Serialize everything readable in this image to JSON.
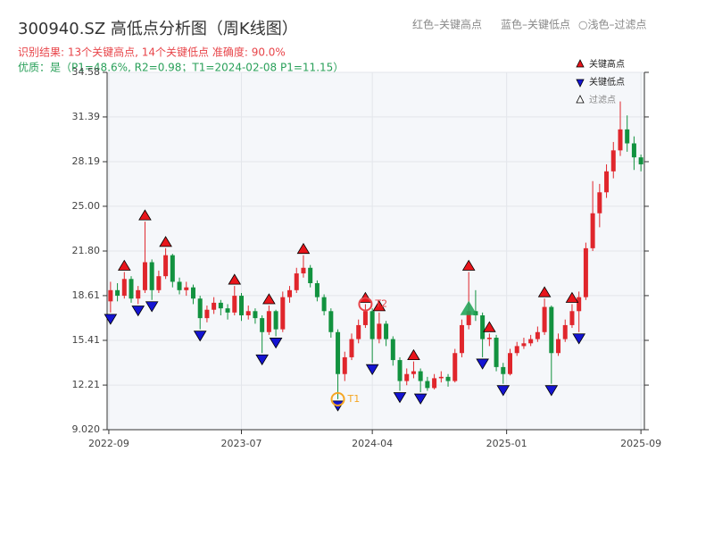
{
  "chart_data": {
    "type": "candlestick",
    "title": "300940.SZ 高低点分析图（周K线图）",
    "header_notes": [
      "红色–关键高点",
      "蓝色–关键低点",
      "○浅色–过滤点"
    ],
    "subtitle": "识别结果: 13个关键高点, 14个关键低点   准确度: 90.0%",
    "quality_note": "优质：是（P1=48.6%,  R2=0.98；T1=2024-02-08 P1=11.15）",
    "up_color": "#e0262c",
    "down_color": "#12923f",
    "grid": true,
    "xlim": [
      0,
      156
    ],
    "xticks": [
      {
        "value": 0.5,
        "label": "2022-09"
      },
      {
        "value": 39,
        "label": "2023-07"
      },
      {
        "value": 77,
        "label": "2024-04"
      },
      {
        "value": 116,
        "label": "2025-01"
      },
      {
        "value": 155,
        "label": "2025-09"
      }
    ],
    "ylim": [
      9.02,
      34.58
    ],
    "yticks": [
      {
        "value": 9.02,
        "label": "9.020"
      },
      12.21,
      15.41,
      18.61,
      {
        "value": 21.8,
        "label": "21.80"
      },
      {
        "value": 25,
        "label": "25.00"
      },
      28.19,
      31.39,
      34.58
    ],
    "x": [
      1,
      3,
      5,
      7,
      9,
      11,
      13,
      15,
      17,
      19,
      21,
      23,
      25,
      27,
      29,
      31,
      33,
      35,
      37,
      39,
      41,
      43,
      45,
      47,
      49,
      51,
      53,
      55,
      57,
      59,
      61,
      63,
      65,
      67,
      69,
      71,
      73,
      75,
      77,
      79,
      81,
      83,
      85,
      87,
      89,
      91,
      93,
      95,
      97,
      99,
      101,
      103,
      105,
      107,
      109,
      111,
      113,
      115,
      117,
      119,
      121,
      123,
      125,
      127,
      129,
      131,
      133,
      135,
      137,
      139,
      141,
      143,
      145,
      147,
      149,
      151,
      153,
      155
    ],
    "candles": [
      [
        18.2,
        19.6,
        17.4,
        19.0
      ],
      [
        19.0,
        19.5,
        18.2,
        18.6
      ],
      [
        18.6,
        20.3,
        18.4,
        19.8
      ],
      [
        19.8,
        20.0,
        18.1,
        18.4
      ],
      [
        18.4,
        19.3,
        18.0,
        19.0
      ],
      [
        19.0,
        23.9,
        18.8,
        21.0
      ],
      [
        21.0,
        21.2,
        18.3,
        19.0
      ],
      [
        19.0,
        20.4,
        18.8,
        20.0
      ],
      [
        20.0,
        22.0,
        19.8,
        21.5
      ],
      [
        21.5,
        21.6,
        19.2,
        19.6
      ],
      [
        19.6,
        19.9,
        18.7,
        19.0
      ],
      [
        19.0,
        19.6,
        18.6,
        19.2
      ],
      [
        19.2,
        19.4,
        18.0,
        18.4
      ],
      [
        18.4,
        18.6,
        16.2,
        17.0
      ],
      [
        17.0,
        17.9,
        16.7,
        17.6
      ],
      [
        17.6,
        18.5,
        17.3,
        18.1
      ],
      [
        18.1,
        18.3,
        17.2,
        17.7
      ],
      [
        17.7,
        18.0,
        16.9,
        17.4
      ],
      [
        17.4,
        19.3,
        17.2,
        18.6
      ],
      [
        18.6,
        18.8,
        16.8,
        17.2
      ],
      [
        17.2,
        17.9,
        16.9,
        17.5
      ],
      [
        17.5,
        17.7,
        16.6,
        17.0
      ],
      [
        17.0,
        17.2,
        14.5,
        16.0
      ],
      [
        16.0,
        17.9,
        15.8,
        17.5
      ],
      [
        17.5,
        17.6,
        15.7,
        16.2
      ],
      [
        16.2,
        18.9,
        16.0,
        18.5
      ],
      [
        18.5,
        19.3,
        18.1,
        19.0
      ],
      [
        19.0,
        20.6,
        18.8,
        20.2
      ],
      [
        20.2,
        21.5,
        19.9,
        20.6
      ],
      [
        20.6,
        20.8,
        19.2,
        19.5
      ],
      [
        19.5,
        19.7,
        18.2,
        18.5
      ],
      [
        18.5,
        18.7,
        17.2,
        17.5
      ],
      [
        17.5,
        17.7,
        15.6,
        16.0
      ],
      [
        16.0,
        16.2,
        11.2,
        13.0
      ],
      [
        13.0,
        14.6,
        12.5,
        14.2
      ],
      [
        14.2,
        15.9,
        14.0,
        15.5
      ],
      [
        15.5,
        16.9,
        15.2,
        16.5
      ],
      [
        16.5,
        18.0,
        16.3,
        17.5
      ],
      [
        17.5,
        17.7,
        13.8,
        15.5
      ],
      [
        15.5,
        17.4,
        15.2,
        16.6
      ],
      [
        16.6,
        16.8,
        15.0,
        15.5
      ],
      [
        15.5,
        15.7,
        13.6,
        14.0
      ],
      [
        14.0,
        14.2,
        11.8,
        12.5
      ],
      [
        12.5,
        13.4,
        12.2,
        13.0
      ],
      [
        13.0,
        13.9,
        12.7,
        13.2
      ],
      [
        13.2,
        13.4,
        11.7,
        12.5
      ],
      [
        12.5,
        12.8,
        11.8,
        12.0
      ],
      [
        12.0,
        13.0,
        11.9,
        12.7
      ],
      [
        12.7,
        13.2,
        12.4,
        12.8
      ],
      [
        12.8,
        13.0,
        12.1,
        12.5
      ],
      [
        12.5,
        14.8,
        12.4,
        14.5
      ],
      [
        14.5,
        16.9,
        14.2,
        16.5
      ],
      [
        16.5,
        20.3,
        16.2,
        17.5
      ],
      [
        17.5,
        19.0,
        16.8,
        17.2
      ],
      [
        17.2,
        17.4,
        14.2,
        15.5
      ],
      [
        15.5,
        15.9,
        15.0,
        15.6
      ],
      [
        15.6,
        15.8,
        13.2,
        13.5
      ],
      [
        13.5,
        13.8,
        12.3,
        13.0
      ],
      [
        13.0,
        14.8,
        12.9,
        14.5
      ],
      [
        14.5,
        15.3,
        14.3,
        15.0
      ],
      [
        15.0,
        15.6,
        14.8,
        15.2
      ],
      [
        15.2,
        15.8,
        15.0,
        15.5
      ],
      [
        15.5,
        16.4,
        15.3,
        16.0
      ],
      [
        16.0,
        18.4,
        15.8,
        17.8
      ],
      [
        17.8,
        17.9,
        12.3,
        14.5
      ],
      [
        14.5,
        15.9,
        14.3,
        15.5
      ],
      [
        15.5,
        16.9,
        15.3,
        16.5
      ],
      [
        16.5,
        18.0,
        16.3,
        17.5
      ],
      [
        17.5,
        18.9,
        16.0,
        18.5
      ],
      [
        18.5,
        22.4,
        18.3,
        22.0
      ],
      [
        22.0,
        26.8,
        21.8,
        24.5
      ],
      [
        24.5,
        26.6,
        23.5,
        26.0
      ],
      [
        26.0,
        28.0,
        25.6,
        27.5
      ],
      [
        27.5,
        29.6,
        27.0,
        29.0
      ],
      [
        29.0,
        32.5,
        28.6,
        30.5
      ],
      [
        30.5,
        31.5,
        28.9,
        29.5
      ],
      [
        29.5,
        30.0,
        27.6,
        28.5
      ],
      [
        28.5,
        28.7,
        27.5,
        28.0
      ]
    ],
    "high_points": {
      "name": "关键高点",
      "color": "#e8151b",
      "x": [
        5,
        11,
        17,
        37,
        47,
        57,
        75,
        79,
        89,
        105,
        111,
        127,
        135
      ],
      "y": [
        20.3,
        23.9,
        22.0,
        19.3,
        17.9,
        21.5,
        18.0,
        17.4,
        13.9,
        20.3,
        15.9,
        18.4,
        18.0
      ]
    },
    "low_points": {
      "name": "关键低点",
      "color": "#1414d2",
      "x": [
        1,
        9,
        13,
        27,
        45,
        49,
        67,
        77,
        85,
        91,
        109,
        115,
        129,
        137
      ],
      "y": [
        17.4,
        18.0,
        18.3,
        16.2,
        14.5,
        15.7,
        11.2,
        13.8,
        11.8,
        11.7,
        14.2,
        12.3,
        12.3,
        16.0
      ]
    },
    "filtered_points": {
      "name": "过滤点",
      "color": "#25a55a",
      "x": [
        105
      ],
      "y": [
        17.6
      ]
    },
    "annotations": [
      {
        "text": "T1",
        "x": 67,
        "y": 11.2,
        "color": "#f5a623"
      },
      {
        "text": "T2",
        "x": 75,
        "y": 18.0,
        "color": "#e8454a"
      }
    ]
  }
}
